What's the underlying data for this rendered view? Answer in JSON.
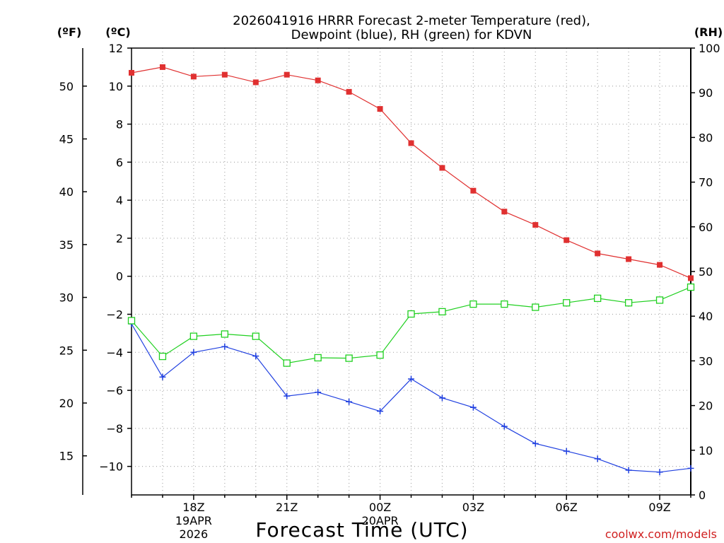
{
  "chart_data": {
    "type": "line",
    "title_line1": "2026041916 HRRR Forecast 2-meter Temperature (red),",
    "title_line2": "Dewpoint (blue), RH (green) for KDVN",
    "xlabel": "Forecast Time (UTC)",
    "left_axis_label_f": "(ºF)",
    "left_axis_label_c": "(ºC)",
    "right_axis_label": "(RH)",
    "watermark": "coolwx.com/models",
    "x_hours": [
      0,
      1,
      2,
      3,
      4,
      5,
      6,
      7,
      8,
      9,
      10,
      11,
      12,
      13,
      14,
      15,
      16,
      17,
      18
    ],
    "x_tick_hours": [
      2,
      5,
      8,
      11,
      14,
      17
    ],
    "x_tick_labels": [
      "18Z",
      "21Z",
      "00Z",
      "03Z",
      "06Z",
      "09Z"
    ],
    "date_labels": [
      {
        "hour": 2,
        "lines": [
          "19APR",
          "2026"
        ]
      },
      {
        "hour": 8,
        "lines": [
          "20APR"
        ]
      }
    ],
    "celsius_ylim": [
      -11.5,
      12
    ],
    "celsius_ticks": [
      12,
      10,
      8,
      6,
      4,
      2,
      0,
      -2,
      -4,
      -6,
      -8,
      -10
    ],
    "celsius_tick_labels": [
      "12",
      "10",
      "8",
      "6",
      "4",
      "2",
      "0",
      "−2",
      "−4",
      "−6",
      "−8",
      "−10"
    ],
    "fahrenheit_ticks": [
      50,
      45,
      40,
      35,
      30,
      25,
      20,
      15
    ],
    "fahrenheit_tick_labels": [
      "50",
      "45",
      "40",
      "35",
      "30",
      "25",
      "20",
      "15"
    ],
    "rh_ylim": [
      0,
      100
    ],
    "rh_ticks": [
      0,
      10,
      20,
      30,
      40,
      50,
      60,
      70,
      80,
      90,
      100
    ],
    "rh_tick_labels": [
      "0",
      "10",
      "20",
      "30",
      "40",
      "50",
      "60",
      "70",
      "80",
      "90",
      "100"
    ],
    "grid": true,
    "series": [
      {
        "name": "2-meter Temperature",
        "axis": "celsius",
        "color": "#e03030",
        "marker": "filled-square",
        "values": [
          10.7,
          11.0,
          10.5,
          10.6,
          10.2,
          10.6,
          10.3,
          9.7,
          8.8,
          7.0,
          5.7,
          4.5,
          3.4,
          2.7,
          1.9,
          1.2,
          0.9,
          0.6,
          -0.1
        ]
      },
      {
        "name": "Dewpoint",
        "axis": "celsius",
        "color": "#2040e0",
        "marker": "plus",
        "values": [
          -2.5,
          -5.3,
          -4.0,
          -3.7,
          -4.2,
          -6.3,
          -6.1,
          -6.6,
          -7.1,
          -5.4,
          -6.4,
          -6.9,
          -7.9,
          -8.8,
          -9.2,
          -9.6,
          -10.2,
          -10.3,
          -10.1
        ]
      },
      {
        "name": "RH",
        "axis": "rh",
        "color": "#20d020",
        "marker": "open-square",
        "values": [
          39,
          31,
          35.5,
          36,
          35.5,
          29.5,
          30.7,
          30.6,
          31.3,
          40.5,
          41,
          42.7,
          42.7,
          42,
          43,
          44,
          43,
          43.6,
          46.5
        ]
      }
    ]
  }
}
